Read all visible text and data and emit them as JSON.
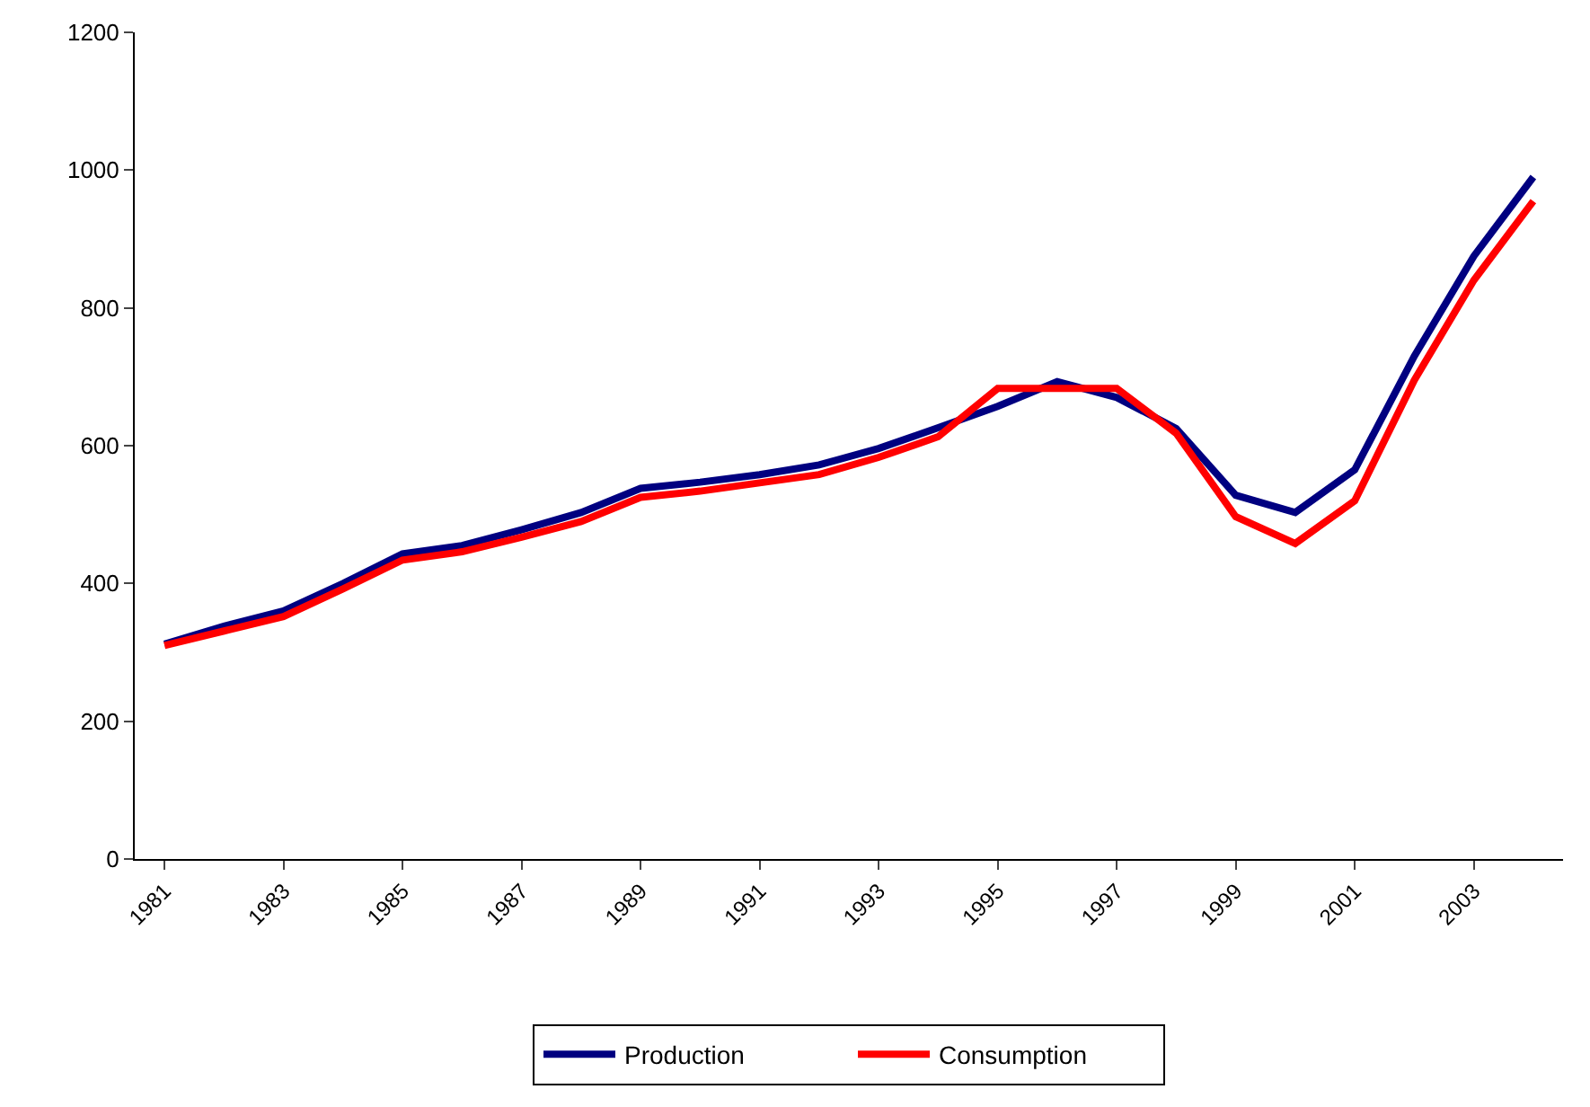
{
  "chart_data": {
    "type": "line",
    "categories": [
      "1981",
      null,
      "1983",
      null,
      "1985",
      null,
      "1987",
      null,
      "1989",
      null,
      "1991",
      null,
      "1993",
      null,
      "1995",
      null,
      "1997",
      null,
      "1999",
      null,
      "2001",
      null,
      "2003",
      null
    ],
    "series": [
      {
        "name": "Production",
        "color": "#000080",
        "values": [
          312,
          338,
          360,
          400,
          443,
          455,
          478,
          503,
          538,
          547,
          558,
          572,
          596,
          626,
          657,
          693,
          670,
          625,
          528,
          503,
          565,
          730,
          875,
          990
        ]
      },
      {
        "name": "Consumption",
        "color": "#ff0000",
        "values": [
          310,
          331,
          352,
          392,
          434,
          446,
          467,
          490,
          525,
          534,
          546,
          558,
          583,
          613,
          683,
          683,
          683,
          618,
          497,
          458,
          520,
          695,
          840,
          955
        ]
      }
    ],
    "ylim": [
      0,
      1200
    ],
    "yticks": [
      0,
      200,
      400,
      600,
      800,
      1000,
      1200
    ],
    "legend": "bottom",
    "marker": "none",
    "line_style": "solid"
  }
}
